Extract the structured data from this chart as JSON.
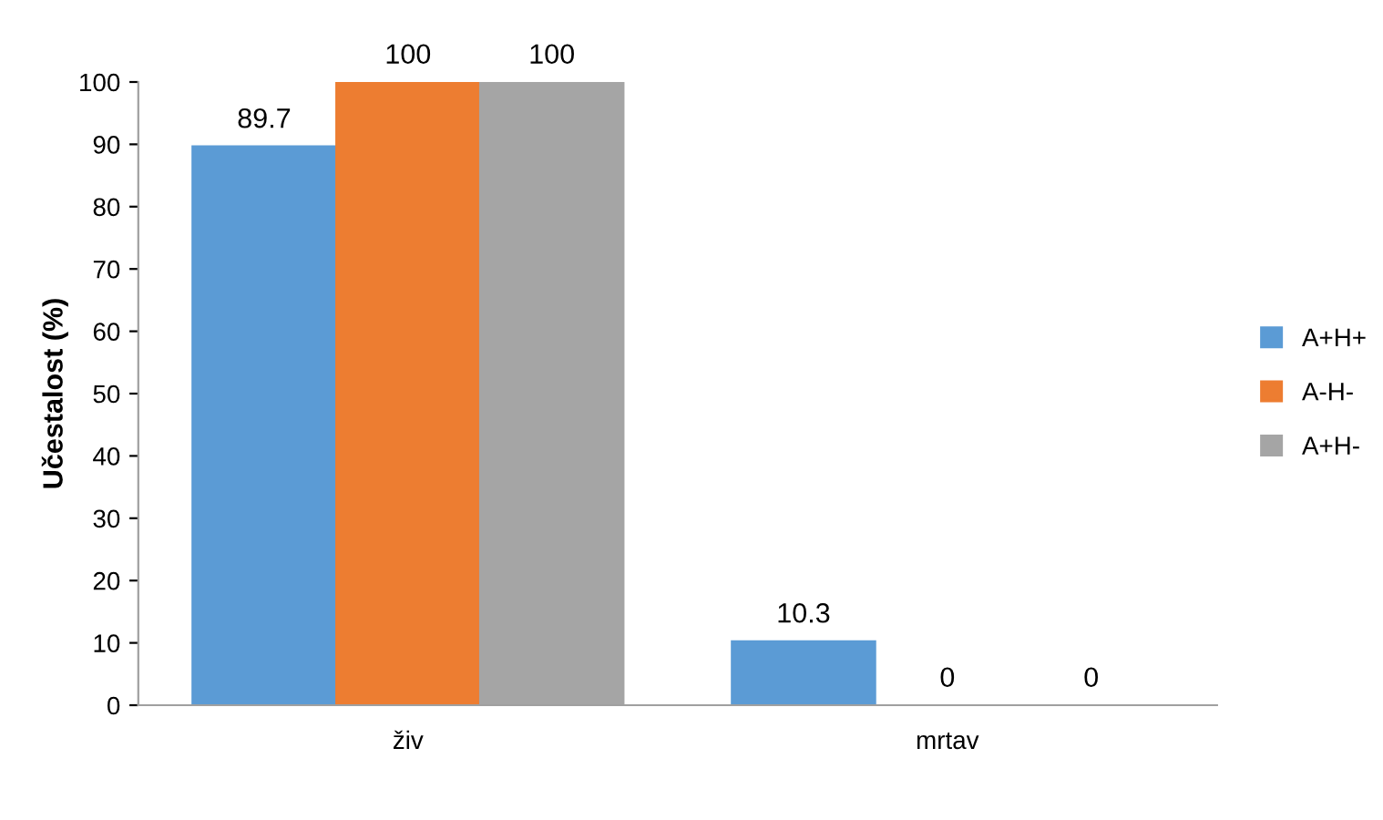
{
  "chart_data": {
    "type": "bar",
    "ylabel": "Učestalost (%)",
    "categories": [
      "živ",
      "mrtav"
    ],
    "series": [
      {
        "name": "A+H+",
        "color": "#5b9bd5",
        "values": [
          89.7,
          10.3
        ]
      },
      {
        "name": "A-H-",
        "color": "#ed7d31",
        "values": [
          100,
          0
        ]
      },
      {
        "name": "A+H-",
        "color": "#a5a5a5",
        "values": [
          100,
          0
        ]
      }
    ],
    "ylim": [
      0,
      100
    ],
    "yticks": [
      0,
      10,
      20,
      30,
      40,
      50,
      60,
      70,
      80,
      90,
      100
    ],
    "grid": false,
    "legend": "right",
    "data_labels": true
  }
}
